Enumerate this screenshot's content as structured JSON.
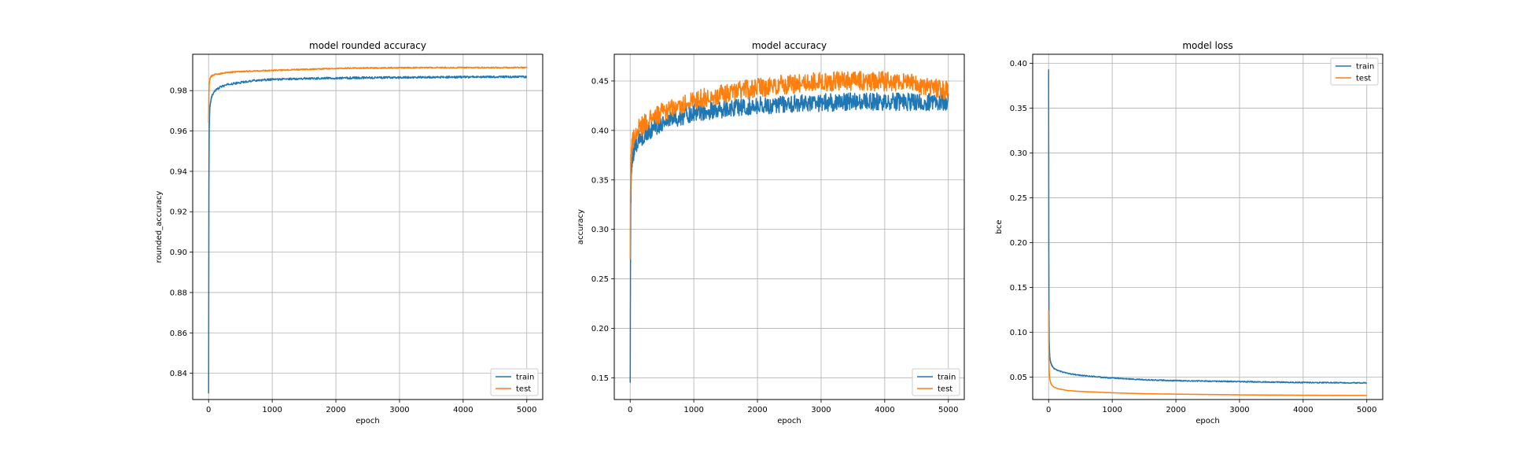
{
  "colors": {
    "train": "#1f77b4",
    "test": "#ff7f0e",
    "grid": "#b0b0b0"
  },
  "chart_data": [
    {
      "type": "line",
      "title": "model rounded accuracy",
      "xlabel": "epoch",
      "ylabel": "rounded_accuracy",
      "xlim": [
        -250,
        5250
      ],
      "ylim": [
        0.827,
        0.998
      ],
      "xticks": [
        0,
        1000,
        2000,
        3000,
        4000,
        5000
      ],
      "yticks": [
        0.84,
        0.86,
        0.88,
        0.9,
        0.92,
        0.94,
        0.96,
        0.98
      ],
      "ytick_labels": [
        "0.84",
        "0.86",
        "0.88",
        "0.90",
        "0.92",
        "0.94",
        "0.96",
        "0.98"
      ],
      "grid": true,
      "legend": "lower-right",
      "series": [
        {
          "name": "train",
          "noise": 0.0005,
          "x": [
            0,
            5,
            10,
            20,
            40,
            60,
            100,
            150,
            200,
            300,
            500,
            700,
            1000,
            1500,
            2000,
            2500,
            3000,
            3500,
            4000,
            4500,
            5000
          ],
          "values": [
            0.83,
            0.935,
            0.962,
            0.972,
            0.976,
            0.978,
            0.98,
            0.981,
            0.982,
            0.983,
            0.984,
            0.985,
            0.9855,
            0.986,
            0.9862,
            0.9864,
            0.9865,
            0.9866,
            0.9867,
            0.9868,
            0.9868
          ]
        },
        {
          "name": "test",
          "noise": 0.0003,
          "x": [
            0,
            5,
            10,
            20,
            40,
            60,
            100,
            200,
            300,
            500,
            1000,
            1500,
            2000,
            2500,
            3000,
            3500,
            4000,
            4500,
            5000
          ],
          "values": [
            0.964,
            0.978,
            0.983,
            0.986,
            0.987,
            0.9875,
            0.988,
            0.9885,
            0.989,
            0.9895,
            0.99,
            0.9905,
            0.991,
            0.9912,
            0.9913,
            0.9914,
            0.9914,
            0.9914,
            0.9914
          ]
        }
      ]
    },
    {
      "type": "line",
      "title": "model accuracy",
      "xlabel": "epoch",
      "ylabel": "accuracy",
      "xlim": [
        -250,
        5250
      ],
      "ylim": [
        0.128,
        0.477
      ],
      "xticks": [
        0,
        1000,
        2000,
        3000,
        4000,
        5000
      ],
      "yticks": [
        0.15,
        0.2,
        0.25,
        0.3,
        0.35,
        0.4,
        0.45
      ],
      "ytick_labels": [
        "0.15",
        "0.20",
        "0.25",
        "0.30",
        "0.35",
        "0.40",
        "0.45"
      ],
      "grid": true,
      "legend": "lower-right",
      "series": [
        {
          "name": "train",
          "noise": 0.009,
          "x": [
            0,
            5,
            10,
            20,
            40,
            80,
            150,
            300,
            500,
            1000,
            1500,
            2000,
            2500,
            3000,
            3500,
            4000,
            4500,
            5000
          ],
          "values": [
            0.145,
            0.26,
            0.33,
            0.36,
            0.375,
            0.385,
            0.392,
            0.4,
            0.408,
            0.418,
            0.422,
            0.425,
            0.427,
            0.428,
            0.429,
            0.429,
            0.429,
            0.429
          ]
        },
        {
          "name": "test",
          "noise": 0.01,
          "x": [
            0,
            5,
            10,
            20,
            40,
            80,
            150,
            300,
            500,
            1000,
            1500,
            2000,
            2500,
            3000,
            3500,
            4000,
            4500,
            5000
          ],
          "values": [
            0.27,
            0.33,
            0.36,
            0.38,
            0.39,
            0.397,
            0.403,
            0.41,
            0.418,
            0.43,
            0.438,
            0.443,
            0.447,
            0.449,
            0.45,
            0.45,
            0.447,
            0.44
          ]
        }
      ]
    },
    {
      "type": "line",
      "title": "model loss",
      "xlabel": "epoch",
      "ylabel": "bce",
      "xlim": [
        -250,
        5250
      ],
      "ylim": [
        0.025,
        0.41
      ],
      "xticks": [
        0,
        1000,
        2000,
        3000,
        4000,
        5000
      ],
      "yticks": [
        0.05,
        0.1,
        0.15,
        0.2,
        0.25,
        0.3,
        0.35,
        0.4
      ],
      "ytick_labels": [
        "0.05",
        "0.10",
        "0.15",
        "0.20",
        "0.25",
        "0.30",
        "0.35",
        "0.40"
      ],
      "grid": true,
      "legend": "upper-right",
      "series": [
        {
          "name": "train",
          "noise": 0.0006,
          "x": [
            0,
            3,
            6,
            10,
            15,
            20,
            30,
            50,
            80,
            120,
            200,
            300,
            500,
            800,
            1000,
            1500,
            2000,
            3000,
            4000,
            5000
          ],
          "values": [
            0.393,
            0.2,
            0.12,
            0.09,
            0.078,
            0.072,
            0.067,
            0.063,
            0.06,
            0.058,
            0.056,
            0.054,
            0.052,
            0.05,
            0.049,
            0.047,
            0.046,
            0.045,
            0.044,
            0.0435
          ]
        },
        {
          "name": "test",
          "noise": 0.0001,
          "x": [
            0,
            5,
            10,
            20,
            40,
            80,
            150,
            300,
            500,
            1000,
            1500,
            2000,
            3000,
            4000,
            5000
          ],
          "values": [
            0.125,
            0.07,
            0.055,
            0.047,
            0.042,
            0.039,
            0.037,
            0.035,
            0.034,
            0.0325,
            0.0315,
            0.031,
            0.0302,
            0.0298,
            0.0295
          ]
        }
      ]
    }
  ]
}
